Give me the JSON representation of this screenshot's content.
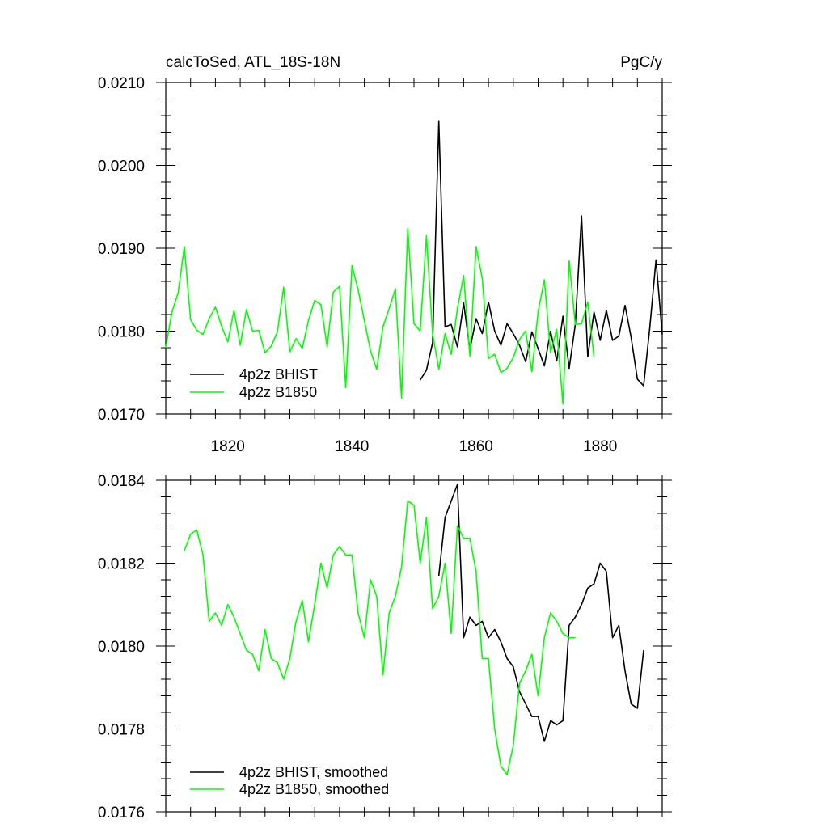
{
  "chart_data": [
    {
      "type": "line",
      "title": "calcToSed, ATL_18S-18N",
      "units_label": "PgC/y",
      "xlim": [
        1810,
        1890
      ],
      "ylim": [
        0.017,
        0.021
      ],
      "xticks": [
        1820,
        1840,
        1860,
        1880
      ],
      "xtick_labels": [
        "1820",
        "1840",
        "1860",
        "1880"
      ],
      "yticks": [
        0.017,
        0.018,
        0.019,
        0.02,
        0.021
      ],
      "ytick_labels": [
        "0.0170",
        "0.0180",
        "0.0190",
        "0.0200",
        "0.0210"
      ],
      "legend_position": "bottom-left",
      "grid": false,
      "series": [
        {
          "name": "4p2z BHIST",
          "color": "#000000",
          "x": [
            1851,
            1852,
            1853,
            1854,
            1855,
            1856,
            1857,
            1858,
            1859,
            1860,
            1861,
            1862,
            1863,
            1864,
            1865,
            1866,
            1867,
            1868,
            1869,
            1870,
            1871,
            1872,
            1873,
            1874,
            1875,
            1876,
            1877,
            1878,
            1879,
            1880,
            1881,
            1882,
            1883,
            1884,
            1885,
            1886,
            1887,
            1888,
            1889,
            1890
          ],
          "values": [
            0.01741,
            0.01753,
            0.01786,
            0.02053,
            0.01805,
            0.01808,
            0.01781,
            0.01834,
            0.01778,
            0.01815,
            0.01797,
            0.01835,
            0.018,
            0.01783,
            0.01809,
            0.01797,
            0.01783,
            0.01763,
            0.01799,
            0.01779,
            0.01758,
            0.018,
            0.01764,
            0.01818,
            0.01755,
            0.01808,
            0.01939,
            0.01769,
            0.01823,
            0.01789,
            0.01825,
            0.01789,
            0.01794,
            0.01831,
            0.01792,
            0.01742,
            0.01734,
            0.01804,
            0.01886,
            0.01796
          ]
        },
        {
          "name": "4p2z B1850",
          "color": "#00ff00",
          "x": [
            1810,
            1811,
            1812,
            1813,
            1814,
            1815,
            1816,
            1817,
            1818,
            1819,
            1820,
            1821,
            1822,
            1823,
            1824,
            1825,
            1826,
            1827,
            1828,
            1829,
            1830,
            1831,
            1832,
            1833,
            1834,
            1835,
            1836,
            1837,
            1838,
            1839,
            1840,
            1841,
            1842,
            1843,
            1844,
            1845,
            1846,
            1847,
            1848,
            1849,
            1850,
            1851,
            1852,
            1853,
            1854,
            1855,
            1856,
            1857,
            1858,
            1859,
            1860,
            1861,
            1862,
            1863,
            1864,
            1865,
            1866,
            1867,
            1868,
            1869,
            1870,
            1871,
            1872,
            1873,
            1874,
            1875,
            1876,
            1877,
            1878,
            1879
          ],
          "values": [
            0.0178,
            0.01823,
            0.01846,
            0.01902,
            0.01814,
            0.01801,
            0.01796,
            0.01815,
            0.01829,
            0.01806,
            0.01787,
            0.01825,
            0.01783,
            0.01826,
            0.018,
            0.01801,
            0.01774,
            0.01782,
            0.01799,
            0.01853,
            0.01775,
            0.01791,
            0.01779,
            0.01813,
            0.01837,
            0.01832,
            0.01781,
            0.01847,
            0.01854,
            0.01732,
            0.01879,
            0.0185,
            0.01813,
            0.01776,
            0.01754,
            0.01805,
            0.01827,
            0.01851,
            0.01719,
            0.01924,
            0.01809,
            0.018,
            0.01915,
            0.01797,
            0.01754,
            0.01797,
            0.01772,
            0.01827,
            0.01867,
            0.0177,
            0.01902,
            0.01864,
            0.01767,
            0.01772,
            0.0175,
            0.01755,
            0.01768,
            0.0179,
            0.018,
            0.01751,
            0.01823,
            0.01862,
            0.01774,
            0.01802,
            0.01712,
            0.01885,
            0.01808,
            0.01809,
            0.01835,
            0.01769
          ]
        }
      ]
    },
    {
      "type": "line",
      "xlim": [
        1810,
        1890
      ],
      "ylim": [
        0.0176,
        0.0184
      ],
      "xticks": [
        1820,
        1840,
        1860,
        1880
      ],
      "yticks": [
        0.0176,
        0.0178,
        0.018,
        0.0182,
        0.0184
      ],
      "ytick_labels": [
        "0.0176",
        "0.0178",
        "0.0180",
        "0.0182",
        "0.0184"
      ],
      "legend_position": "bottom-left",
      "grid": false,
      "series": [
        {
          "name": "4p2z BHIST, smoothed",
          "color": "#000000",
          "x": [
            1854,
            1855,
            1856,
            1857,
            1858,
            1859,
            1860,
            1861,
            1862,
            1863,
            1864,
            1865,
            1866,
            1867,
            1868,
            1869,
            1870,
            1871,
            1872,
            1873,
            1874,
            1875,
            1876,
            1877,
            1878,
            1879,
            1880,
            1881,
            1882,
            1883,
            1884,
            1885,
            1886,
            1887
          ],
          "values": [
            0.01817,
            0.01831,
            0.01835,
            0.01839,
            0.01802,
            0.01807,
            0.01805,
            0.01806,
            0.01802,
            0.01804,
            0.01801,
            0.01797,
            0.01795,
            0.01789,
            0.01786,
            0.01783,
            0.01783,
            0.01777,
            0.01782,
            0.01781,
            0.01782,
            0.01805,
            0.01807,
            0.0181,
            0.01814,
            0.01815,
            0.0182,
            0.01818,
            0.01802,
            0.01805,
            0.01794,
            0.01786,
            0.01785,
            0.01799
          ]
        },
        {
          "name": "4p2z B1850, smoothed",
          "color": "#00ff00",
          "x": [
            1813,
            1814,
            1815,
            1816,
            1817,
            1818,
            1819,
            1820,
            1821,
            1822,
            1823,
            1824,
            1825,
            1826,
            1827,
            1828,
            1829,
            1830,
            1831,
            1832,
            1833,
            1834,
            1835,
            1836,
            1837,
            1838,
            1839,
            1840,
            1841,
            1842,
            1843,
            1844,
            1845,
            1846,
            1847,
            1848,
            1849,
            1850,
            1851,
            1852,
            1853,
            1854,
            1855,
            1856,
            1857,
            1858,
            1859,
            1860,
            1861,
            1862,
            1863,
            1864,
            1865,
            1866,
            1867,
            1868,
            1869,
            1870,
            1871,
            1872,
            1873,
            1874,
            1875,
            1876
          ],
          "values": [
            0.01823,
            0.01827,
            0.01828,
            0.01822,
            0.01806,
            0.01808,
            0.01805,
            0.0181,
            0.01807,
            0.01803,
            0.01799,
            0.01798,
            0.01794,
            0.01804,
            0.01797,
            0.01796,
            0.01792,
            0.01797,
            0.01806,
            0.01811,
            0.01801,
            0.0181,
            0.0182,
            0.01814,
            0.01822,
            0.01824,
            0.01822,
            0.01822,
            0.01808,
            0.01802,
            0.01816,
            0.01812,
            0.01793,
            0.01808,
            0.01812,
            0.01819,
            0.01835,
            0.01834,
            0.0182,
            0.01831,
            0.01809,
            0.01812,
            0.0182,
            0.01803,
            0.01829,
            0.01826,
            0.01826,
            0.01818,
            0.01797,
            0.01797,
            0.0178,
            0.01771,
            0.01769,
            0.01776,
            0.01791,
            0.01794,
            0.01798,
            0.01788,
            0.01802,
            0.01808,
            0.01806,
            0.01803,
            0.01802,
            0.01802
          ]
        }
      ]
    }
  ]
}
